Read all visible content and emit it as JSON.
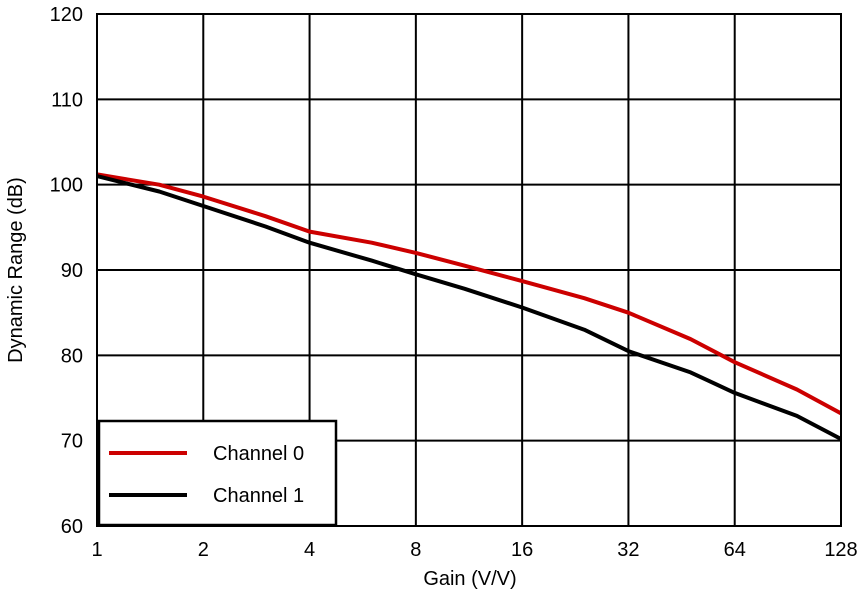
{
  "chart_data": {
    "type": "line",
    "xlabel": "Gain (V/V)",
    "ylabel": "Dynamic Range (dB)",
    "x_scale": "log2",
    "xlim": [
      1,
      128
    ],
    "ylim": [
      60,
      120
    ],
    "x_ticks": [
      "1",
      "2",
      "4",
      "8",
      "16",
      "32",
      "64",
      "128"
    ],
    "y_ticks": [
      "60",
      "70",
      "80",
      "90",
      "100",
      "110",
      "120"
    ],
    "grid": true,
    "legend_position": "bottom-left",
    "series": [
      {
        "name": "Channel 0",
        "color": "#cc0000",
        "x": [
          1,
          1.5,
          2,
          3,
          4,
          6,
          8,
          11,
          16,
          24,
          32,
          48,
          64,
          96,
          128
        ],
        "y": [
          101.2,
          100.0,
          98.6,
          96.3,
          94.5,
          93.2,
          92.0,
          90.5,
          88.7,
          86.7,
          85.0,
          81.9,
          79.2,
          76.0,
          73.2
        ]
      },
      {
        "name": "Channel 1",
        "color": "#000000",
        "x": [
          1,
          1.5,
          2,
          3,
          4,
          6,
          8,
          11,
          16,
          24,
          32,
          48,
          64,
          96,
          128
        ],
        "y": [
          101.0,
          99.2,
          97.5,
          95.1,
          93.2,
          91.1,
          89.5,
          87.8,
          85.6,
          83.0,
          80.5,
          78.0,
          75.6,
          72.9,
          70.2
        ]
      }
    ]
  }
}
